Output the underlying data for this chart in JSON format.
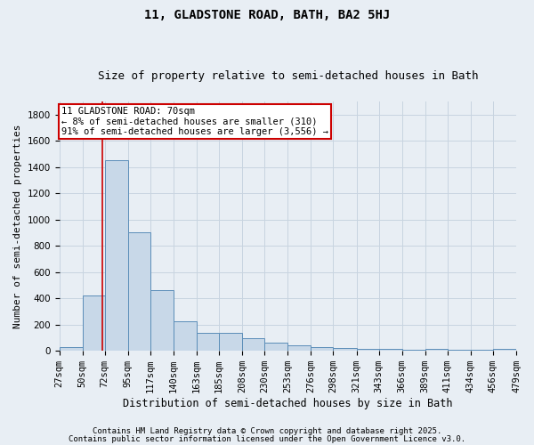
{
  "title1": "11, GLADSTONE ROAD, BATH, BA2 5HJ",
  "title2": "Size of property relative to semi-detached houses in Bath",
  "xlabel": "Distribution of semi-detached houses by size in Bath",
  "ylabel": "Number of semi-detached properties",
  "bin_edges": [
    27,
    50,
    72,
    95,
    117,
    140,
    163,
    185,
    208,
    230,
    253,
    276,
    298,
    321,
    343,
    366,
    389,
    411,
    434,
    456,
    479
  ],
  "bar_heights": [
    30,
    425,
    1450,
    900,
    465,
    225,
    140,
    135,
    95,
    60,
    45,
    30,
    20,
    15,
    15,
    5,
    15,
    10,
    5,
    15
  ],
  "bar_color": "#c8d8e8",
  "bar_edge_color": "#5b8db8",
  "grid_color": "#c8d4e0",
  "bg_color": "#e8eef4",
  "red_line_x": 70,
  "red_line_color": "#cc0000",
  "annotation_line1": "11 GLADSTONE ROAD: 70sqm",
  "annotation_line2": "← 8% of semi-detached houses are smaller (310)",
  "annotation_line3": "91% of semi-detached houses are larger (3,556) →",
  "annotation_box_color": "#ffffff",
  "annotation_box_edge_color": "#cc0000",
  "ylim": [
    0,
    1900
  ],
  "yticks": [
    0,
    200,
    400,
    600,
    800,
    1000,
    1200,
    1400,
    1600,
    1800
  ],
  "footnote1": "Contains HM Land Registry data © Crown copyright and database right 2025.",
  "footnote2": "Contains public sector information licensed under the Open Government Licence v3.0.",
  "title1_fontsize": 10,
  "title2_fontsize": 9,
  "xlabel_fontsize": 8.5,
  "ylabel_fontsize": 8,
  "tick_fontsize": 7.5,
  "annotation_fontsize": 7.5,
  "footnote_fontsize": 6.5
}
